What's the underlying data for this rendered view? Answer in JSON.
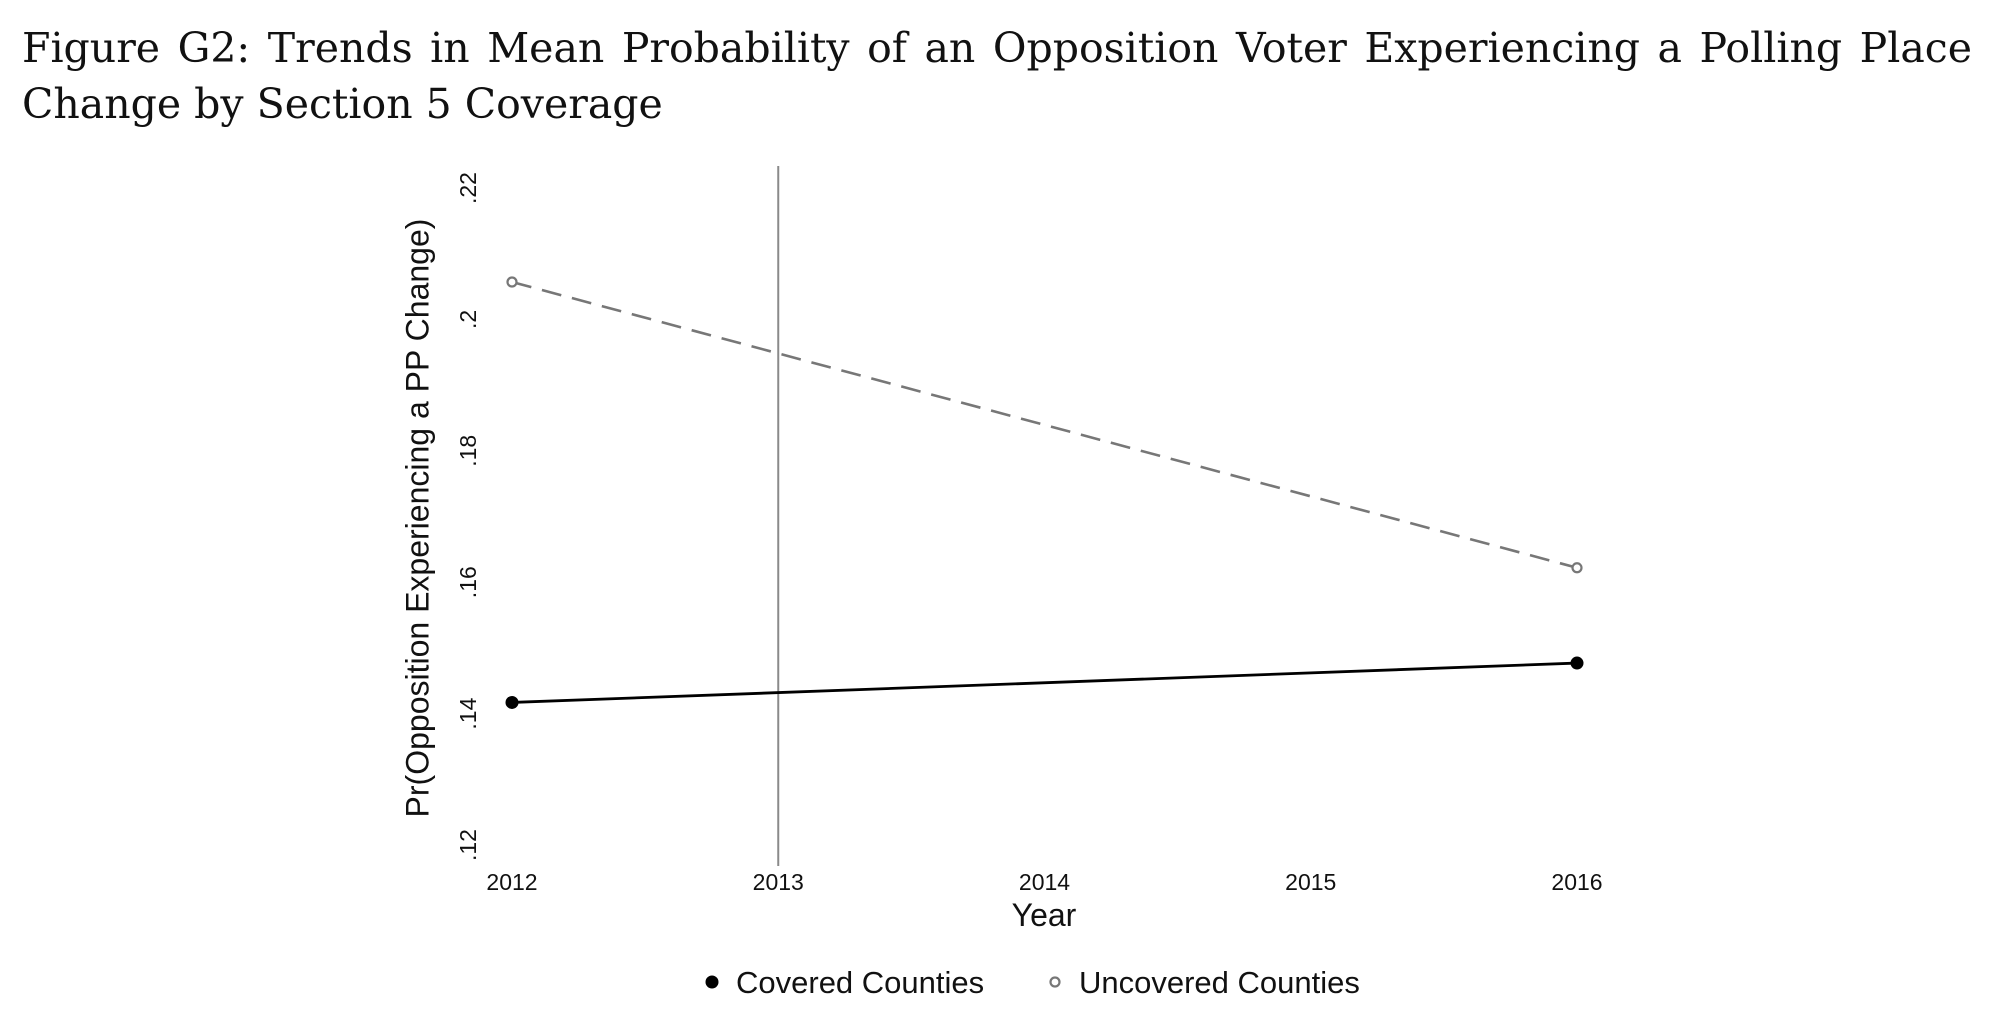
{
  "figure": {
    "title": "Figure G2: Trends in Mean Probability of an Opposition Voter Experiencing a Polling Place Change by Section 5 Coverage"
  },
  "chart_data": {
    "type": "line",
    "title": "",
    "xlabel": "Year",
    "ylabel": "Pr(Opposition Experiencing a PP Change)",
    "x": [
      2012,
      2016
    ],
    "xticks": [
      2012,
      2013,
      2014,
      2015,
      2016
    ],
    "xtick_labels": [
      "2012",
      "2013",
      "2014",
      "2015",
      "2016"
    ],
    "yticks": [
      0.12,
      0.14,
      0.16,
      0.18,
      0.2,
      0.22
    ],
    "ytick_labels": [
      ".12",
      ".14",
      ".16",
      ".18",
      ".2",
      ".22"
    ],
    "xlim": [
      2012,
      2016
    ],
    "ylim": [
      0.12,
      0.22
    ],
    "grid": false,
    "reference_line_x": 2013,
    "legend_position": "bottom",
    "series": [
      {
        "name": "Covered Counties",
        "values": [
          0.142,
          0.148
        ],
        "color": "#000000",
        "line_style": "solid",
        "marker": "filled-circle"
      },
      {
        "name": "Uncovered Counties",
        "values": [
          0.206,
          0.1625
        ],
        "color": "#777777",
        "line_style": "dashed",
        "marker": "hollow-circle"
      }
    ]
  }
}
